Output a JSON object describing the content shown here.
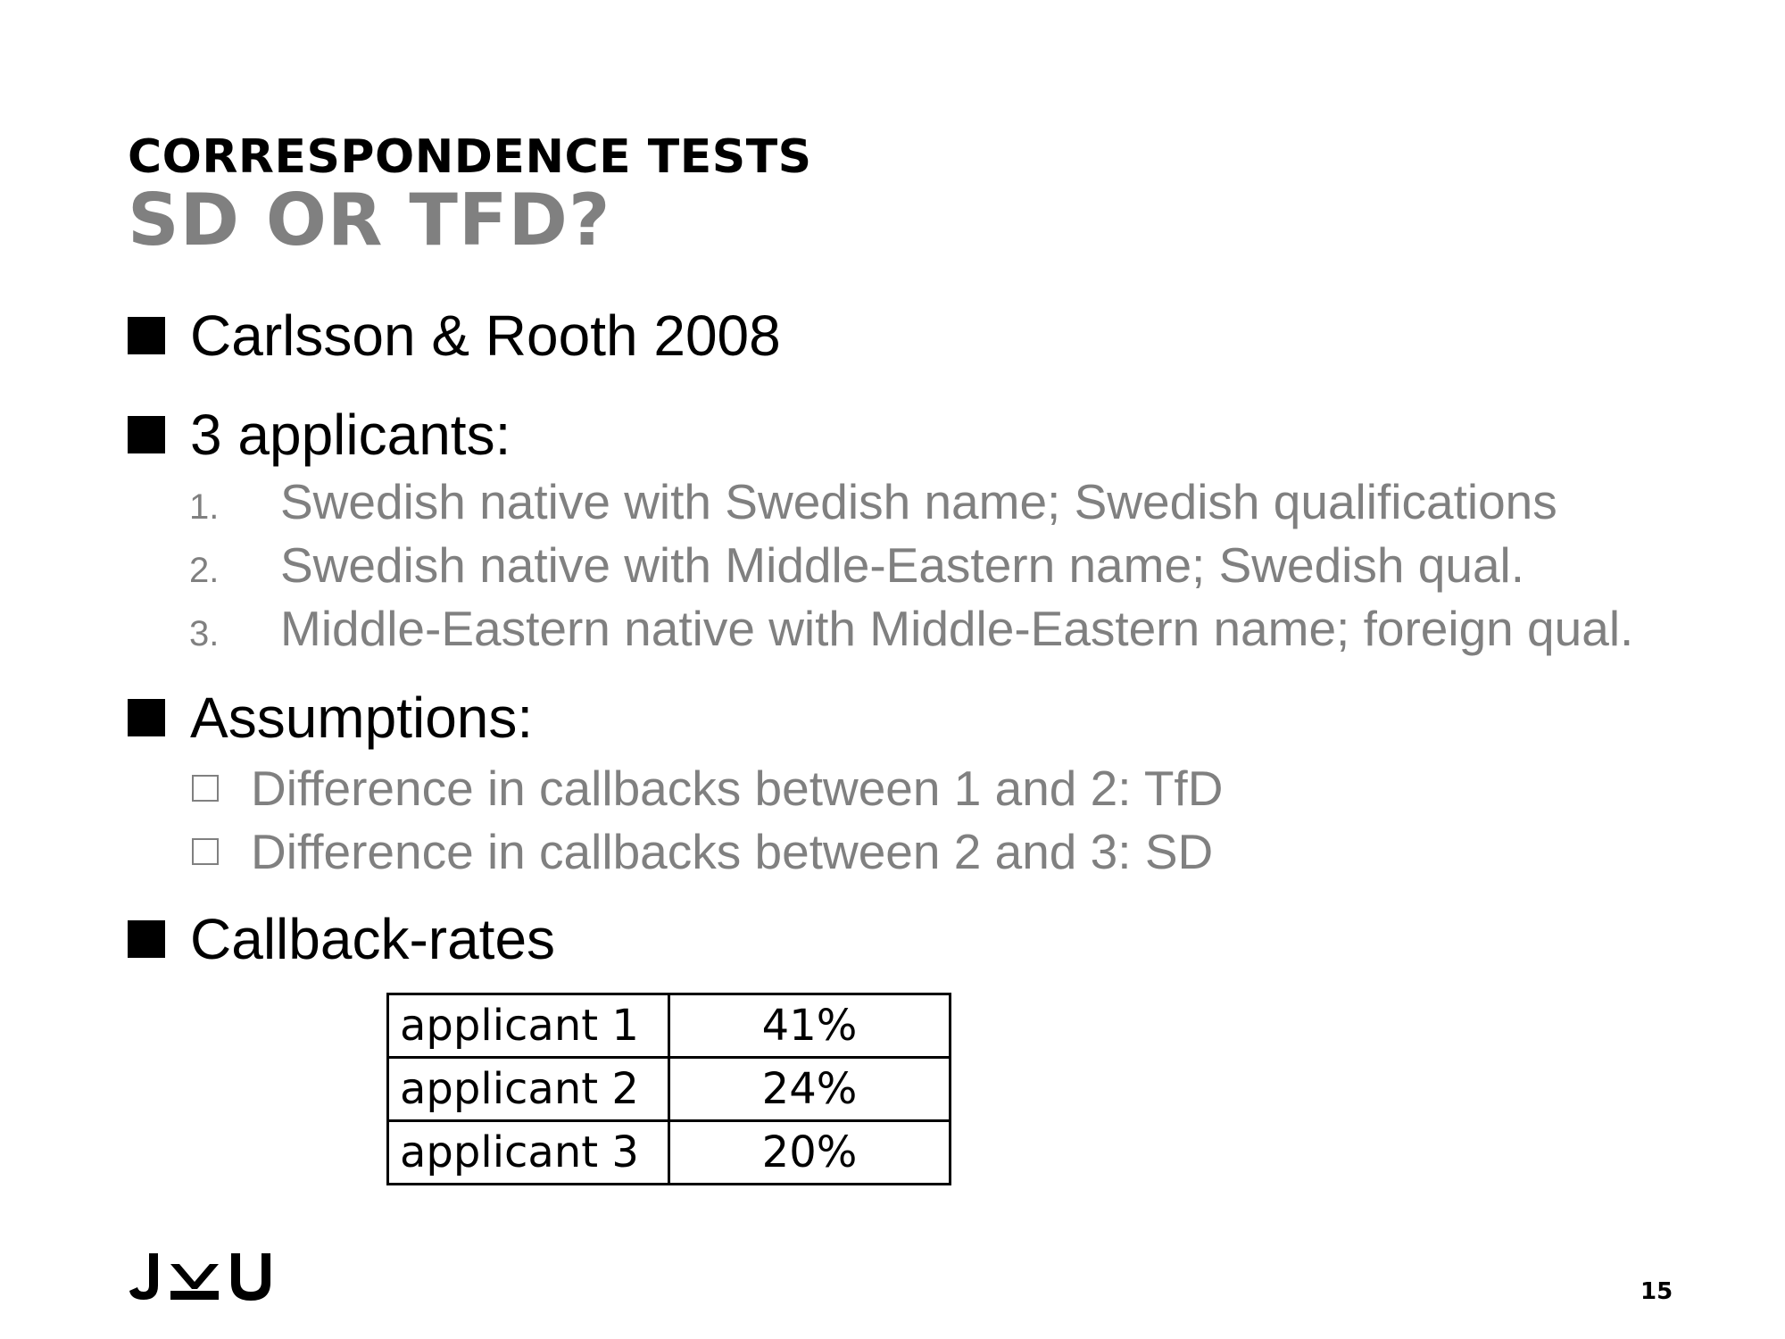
{
  "title": {
    "main": "CORRESPONDENCE TESTS",
    "sub": "SD OR TFD?"
  },
  "bullets": [
    {
      "text": "Carlsson & Rooth 2008"
    },
    {
      "text": "3 applicants:"
    },
    {
      "text": "Assumptions:"
    },
    {
      "text": "Callback-rates"
    }
  ],
  "applicants": [
    {
      "num": "1.",
      "text": "Swedish native with Swedish name; Swedish qualifications"
    },
    {
      "num": "2.",
      "text": "Swedish native with Middle-Eastern name; Swedish qual."
    },
    {
      "num": "3.",
      "text": "Middle-Eastern native with Middle-Eastern name; foreign qual."
    }
  ],
  "assumptions": [
    {
      "text": "Difference in callbacks between 1 and 2: TfD"
    },
    {
      "text": "Difference in callbacks between 2 and 3: SD"
    }
  ],
  "callback_table": {
    "rows": [
      {
        "label": "applicant 1",
        "value": "41%"
      },
      {
        "label": "applicant 2",
        "value": "24%"
      },
      {
        "label": "applicant 3",
        "value": "20%"
      }
    ]
  },
  "logo": {
    "text": "JKU",
    "icon": "jku-logo"
  },
  "page_number": "15",
  "colors": {
    "text": "#000000",
    "subtle": "#808080",
    "background": "#ffffff"
  }
}
